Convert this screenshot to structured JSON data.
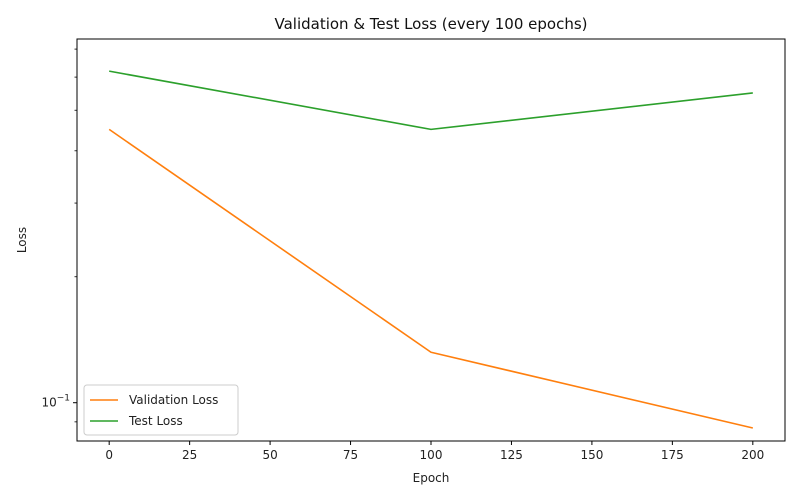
{
  "chart_data": {
    "type": "line",
    "title": "Validation & Test Loss (every 100 epochs)",
    "xlabel": "Epoch",
    "ylabel": "Loss",
    "x": [
      0,
      100,
      200
    ],
    "series": [
      {
        "name": "Validation Loss",
        "color": "#ff7f0e",
        "values": [
          0.45,
          0.132,
          0.087
        ]
      },
      {
        "name": "Test Loss",
        "color": "#2ca02c",
        "values": [
          0.62,
          0.45,
          0.55
        ]
      }
    ],
    "xlim": [
      -10,
      210
    ],
    "ylim": [
      0.081,
      0.74
    ],
    "yscale": "log",
    "xticks": [
      0,
      25,
      50,
      75,
      100,
      125,
      150,
      175,
      200
    ],
    "yticks_major": [
      {
        "value": 0.1,
        "base": "10",
        "exp": "−1"
      }
    ],
    "legend_position": "lower-left",
    "grid": false
  }
}
